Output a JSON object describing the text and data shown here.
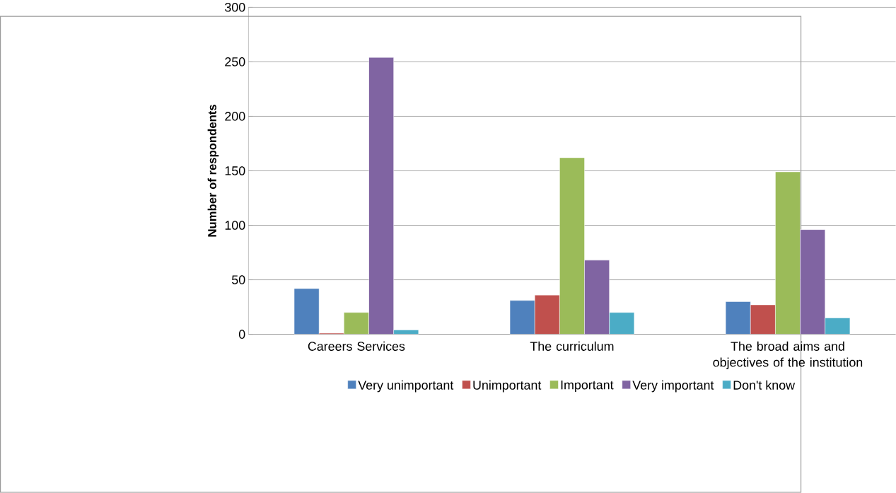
{
  "chart_data": {
    "type": "bar",
    "ylabel": "Number of respondents",
    "categories": [
      "Careers Services",
      "The curriculum",
      "The broad aims and objectives of the institution"
    ],
    "series": [
      {
        "name": "Very unimportant",
        "color": "#4f81bd",
        "values": [
          42,
          31,
          30
        ]
      },
      {
        "name": "Unimportant",
        "color": "#c0504d",
        "values": [
          1,
          36,
          27
        ]
      },
      {
        "name": "Important",
        "color": "#9bbb59",
        "values": [
          20,
          162,
          149
        ]
      },
      {
        "name": "Very important",
        "color": "#8064a2",
        "values": [
          254,
          68,
          96
        ]
      },
      {
        "name": "Don't know",
        "color": "#4bacc6",
        "values": [
          4,
          20,
          15
        ]
      }
    ],
    "ylim": [
      0,
      300
    ],
    "yticks": [
      0,
      50,
      100,
      150,
      200,
      250,
      300
    ],
    "grid": "y",
    "legend": "bottom"
  }
}
